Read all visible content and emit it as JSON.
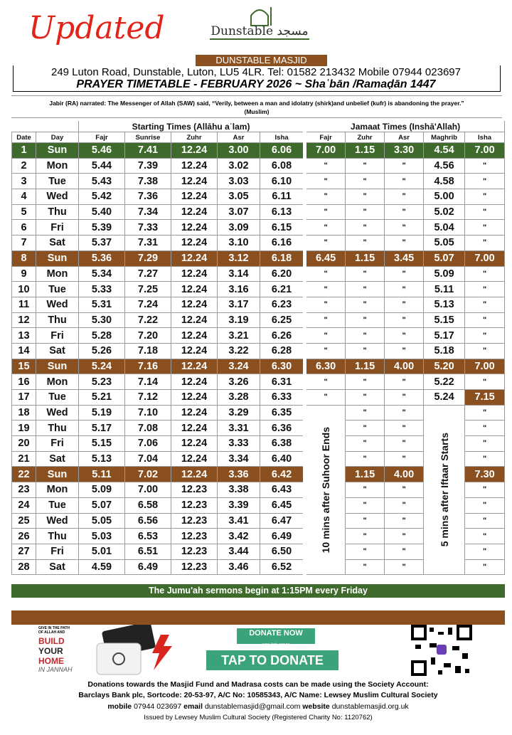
{
  "header": {
    "updated": "Updated",
    "logo_script": "Dunstable مسجد",
    "logo_name": "DUNSTABLE MASJID",
    "address": "249 Luton Road, Dunstable, Luton, LU5 4LR. Tel: 01582 213432 Mobile 07944 023697",
    "title": "PRAYER TIMETABLE - FEBRUARY 2026 ~ Shaʿbān /Ramaḍān 1447"
  },
  "hadith": {
    "text": "Jabir (RA) narrated: The Messenger of Allah (SAW) said, “Verily, between a man and idolatry (shirk)and unbelief (kufr) is abandoning the prayer.”",
    "source": "(Muslim)"
  },
  "table": {
    "group_headers": [
      "Starting Times (Allāhu aʿlam)",
      "Jamaat Times (Inshā'Allah)"
    ],
    "columns": [
      "Date",
      "Day",
      "Fajr",
      "Sunrise",
      "Zuhr",
      "Asr",
      "Isha",
      "Fajr",
      "Zuhr",
      "Asr",
      "Maghrib",
      "Isha"
    ],
    "rows": [
      [
        1,
        "Sun",
        "5.46",
        "7.41",
        "12.24",
        "3.00",
        "6.06",
        "7.00",
        "1.15",
        "3.30",
        "4.54",
        "7.00"
      ],
      [
        2,
        "Mon",
        "5.44",
        "7.39",
        "12.24",
        "3.02",
        "6.08",
        "\"",
        "\"",
        "\"",
        "4.56",
        "\""
      ],
      [
        3,
        "Tue",
        "5.43",
        "7.38",
        "12.24",
        "3.03",
        "6.10",
        "\"",
        "\"",
        "\"",
        "4.58",
        "\""
      ],
      [
        4,
        "Wed",
        "5.42",
        "7.36",
        "12.24",
        "3.05",
        "6.11",
        "\"",
        "\"",
        "\"",
        "5.00",
        "\""
      ],
      [
        5,
        "Thu",
        "5.40",
        "7.34",
        "12.24",
        "3.07",
        "6.13",
        "\"",
        "\"",
        "\"",
        "5.02",
        "\""
      ],
      [
        6,
        "Fri",
        "5.39",
        "7.33",
        "12.24",
        "3.09",
        "6.15",
        "\"",
        "\"",
        "\"",
        "5.04",
        "\""
      ],
      [
        7,
        "Sat",
        "5.37",
        "7.31",
        "12.24",
        "3.10",
        "6.16",
        "\"",
        "\"",
        "\"",
        "5.05",
        "\""
      ],
      [
        8,
        "Sun",
        "5.36",
        "7.29",
        "12.24",
        "3.12",
        "6.18",
        "6.45",
        "1.15",
        "3.45",
        "5.07",
        "7.00"
      ],
      [
        9,
        "Mon",
        "5.34",
        "7.27",
        "12.24",
        "3.14",
        "6.20",
        "\"",
        "\"",
        "\"",
        "5.09",
        "\""
      ],
      [
        10,
        "Tue",
        "5.33",
        "7.25",
        "12.24",
        "3.16",
        "6.21",
        "\"",
        "\"",
        "\"",
        "5.11",
        "\""
      ],
      [
        11,
        "Wed",
        "5.31",
        "7.24",
        "12.24",
        "3.17",
        "6.23",
        "\"",
        "\"",
        "\"",
        "5.13",
        "\""
      ],
      [
        12,
        "Thu",
        "5.30",
        "7.22",
        "12.24",
        "3.19",
        "6.25",
        "\"",
        "\"",
        "\"",
        "5.15",
        "\""
      ],
      [
        13,
        "Fri",
        "5.28",
        "7.20",
        "12.24",
        "3.21",
        "6.26",
        "\"",
        "\"",
        "\"",
        "5.17",
        "\""
      ],
      [
        14,
        "Sat",
        "5.26",
        "7.18",
        "12.24",
        "3.22",
        "6.28",
        "\"",
        "\"",
        "\"",
        "5.18",
        "\""
      ],
      [
        15,
        "Sun",
        "5.24",
        "7.16",
        "12.24",
        "3.24",
        "6.30",
        "6.30",
        "1.15",
        "4.00",
        "5.20",
        "7.00"
      ],
      [
        16,
        "Mon",
        "5.23",
        "7.14",
        "12.24",
        "3.26",
        "6.31",
        "\"",
        "\"",
        "\"",
        "5.22",
        "\""
      ],
      [
        17,
        "Tue",
        "5.21",
        "7.12",
        "12.24",
        "3.28",
        "6.33",
        "\"",
        "\"",
        "\"",
        "5.24",
        "7.15"
      ],
      [
        18,
        "Wed",
        "5.19",
        "7.10",
        "12.24",
        "3.29",
        "6.35",
        null,
        "\"",
        "\"",
        null,
        "\""
      ],
      [
        19,
        "Thu",
        "5.17",
        "7.08",
        "12.24",
        "3.31",
        "6.36",
        null,
        "\"",
        "\"",
        null,
        "\""
      ],
      [
        20,
        "Fri",
        "5.15",
        "7.06",
        "12.24",
        "3.33",
        "6.38",
        null,
        "\"",
        "\"",
        null,
        "\""
      ],
      [
        21,
        "Sat",
        "5.13",
        "7.04",
        "12.24",
        "3.34",
        "6.40",
        null,
        "\"",
        "\"",
        null,
        "\""
      ],
      [
        22,
        "Sun",
        "5.11",
        "7.02",
        "12.24",
        "3.36",
        "6.42",
        null,
        "1.15",
        "4.00",
        null,
        "7.30"
      ],
      [
        23,
        "Mon",
        "5.09",
        "7.00",
        "12.23",
        "3.38",
        "6.43",
        null,
        "\"",
        "\"",
        null,
        "\""
      ],
      [
        24,
        "Tue",
        "5.07",
        "6.58",
        "12.23",
        "3.39",
        "6.45",
        null,
        "\"",
        "\"",
        null,
        "\""
      ],
      [
        25,
        "Wed",
        "5.05",
        "6.56",
        "12.23",
        "3.41",
        "6.47",
        null,
        "\"",
        "\"",
        null,
        "\""
      ],
      [
        26,
        "Thu",
        "5.03",
        "6.53",
        "12.23",
        "3.42",
        "6.49",
        null,
        "\"",
        "\"",
        null,
        "\""
      ],
      [
        27,
        "Fri",
        "5.01",
        "6.51",
        "12.23",
        "3.44",
        "6.50",
        null,
        "\"",
        "\"",
        null,
        "\""
      ],
      [
        28,
        "Sat",
        "4.59",
        "6.49",
        "12.23",
        "3.46",
        "6.52",
        null,
        "\"",
        "\"",
        null,
        "\""
      ]
    ],
    "notes": [
      "10 mins after Suhoor Ends",
      "5 mins after Iftaar Starts"
    ]
  },
  "jumuah": "The Jumu'ah sermons begin at 1:15PM every Friday",
  "ad": {
    "small": "GIVE IN THE PATH OF ALLAH AND",
    "build": "BUILD",
    "your": "YOUR",
    "home": "HOME",
    "jannah": "IN JANNAH"
  },
  "donate": {
    "button": "DONATE NOW",
    "tagline": "easy. fast. secure",
    "tap": "TAP TO DONATE"
  },
  "footer": {
    "donations": "Donations towards the Masjid Fund and Madrasa costs can be made using the Society Account:",
    "bank": "Barclays Bank plc, Sortcode: 20-53-97, A/C No: 10585343, A/C Name: Lewsey Muslim Cultural Society",
    "contact": [
      {
        "label": "mobile",
        "value": "07944 023697"
      },
      {
        "label": "email",
        "value": "dunstablemasjid@gmail.com"
      },
      {
        "label": "website",
        "value": "dunstablemasjid.org.uk"
      }
    ],
    "issued": "Issued by Lewsey Muslim Cultural Society (Registered Charity No: 1120762)"
  }
}
